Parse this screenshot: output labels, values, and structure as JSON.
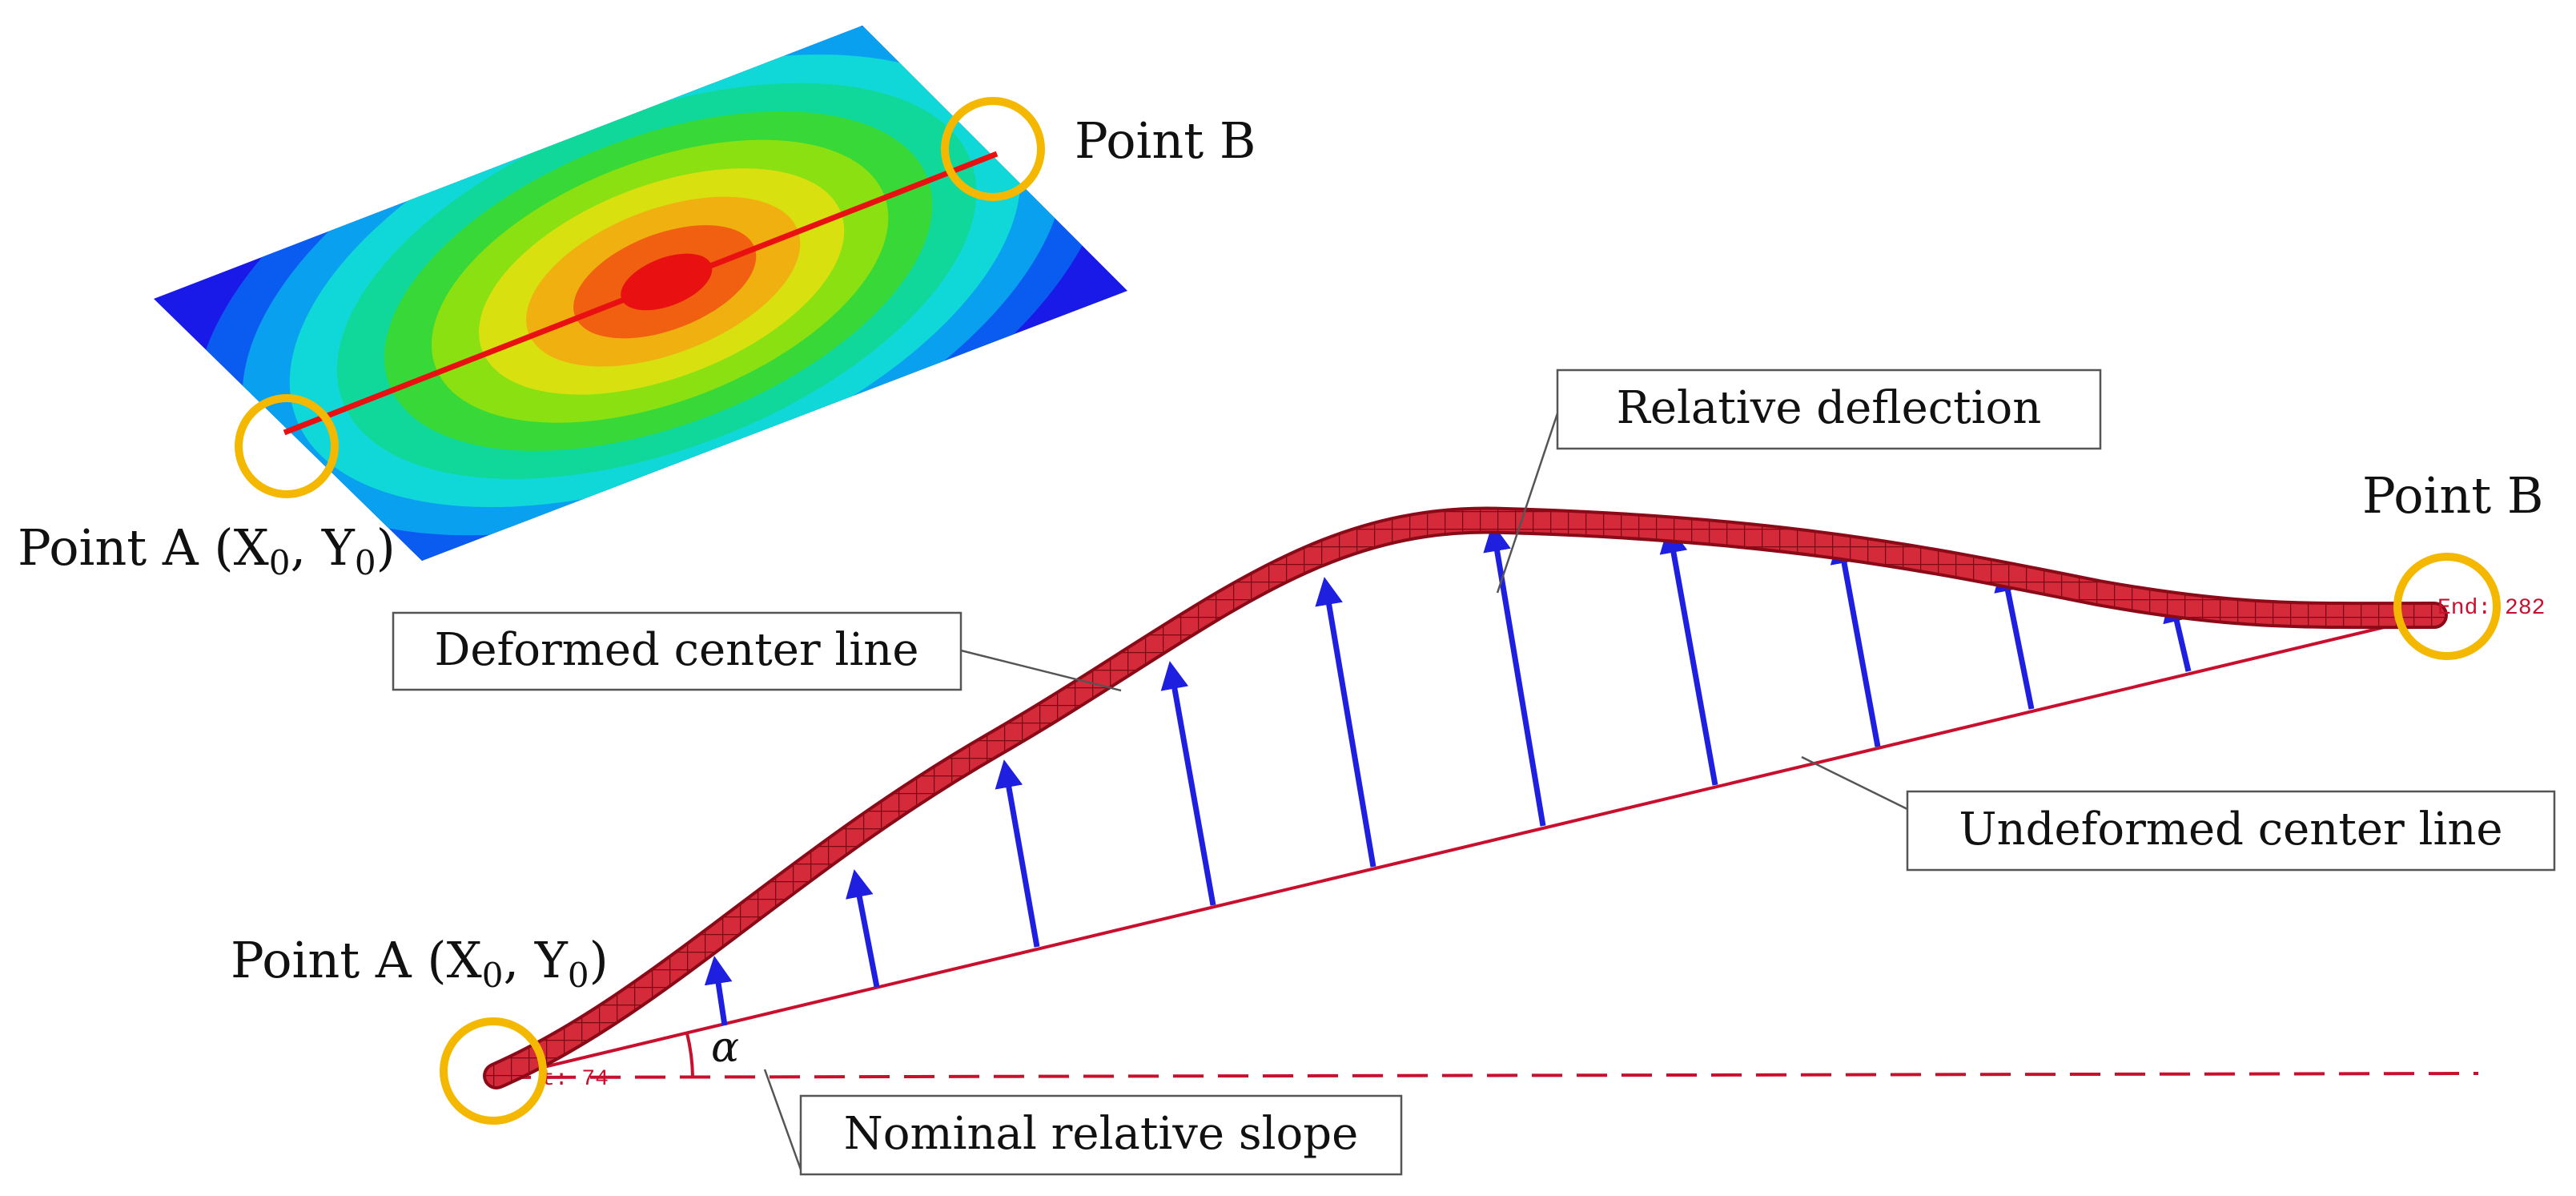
{
  "plate": {
    "point_a_label": "Point A (X",
    "point_a_sub_x": "0",
    "point_a_mid": ", Y",
    "point_a_sub_y": "0",
    "point_a_close": ")",
    "point_b_label": "Point B",
    "contour_colors": [
      "#1a1ae8",
      "#0a5cf0",
      "#0aa0f0",
      "#10d8d8",
      "#10d89a",
      "#38d838",
      "#8ae010",
      "#d8e010",
      "#f0b010",
      "#f06010",
      "#e81010"
    ]
  },
  "beam": {
    "point_a_label": "Point A (X",
    "point_a_sub_x": "0",
    "point_a_mid": ", Y",
    "point_a_sub_y": "0",
    "point_a_close": ")",
    "point_b_label": "Point B",
    "start_tag": "t: 74",
    "end_tag": "End: 282",
    "angle_symbol": "α"
  },
  "callouts": {
    "relative_deflection": "Relative deflection",
    "deformed_center_line": "Deformed center line",
    "undeformed_center_line": "Undeformed center line",
    "nominal_relative_slope": "Nominal relative slope"
  },
  "colors": {
    "beam": "#c8102e",
    "arrow": "#1f1fe0",
    "marker_ring": "#f5b800",
    "plate_line": "#e81010"
  }
}
